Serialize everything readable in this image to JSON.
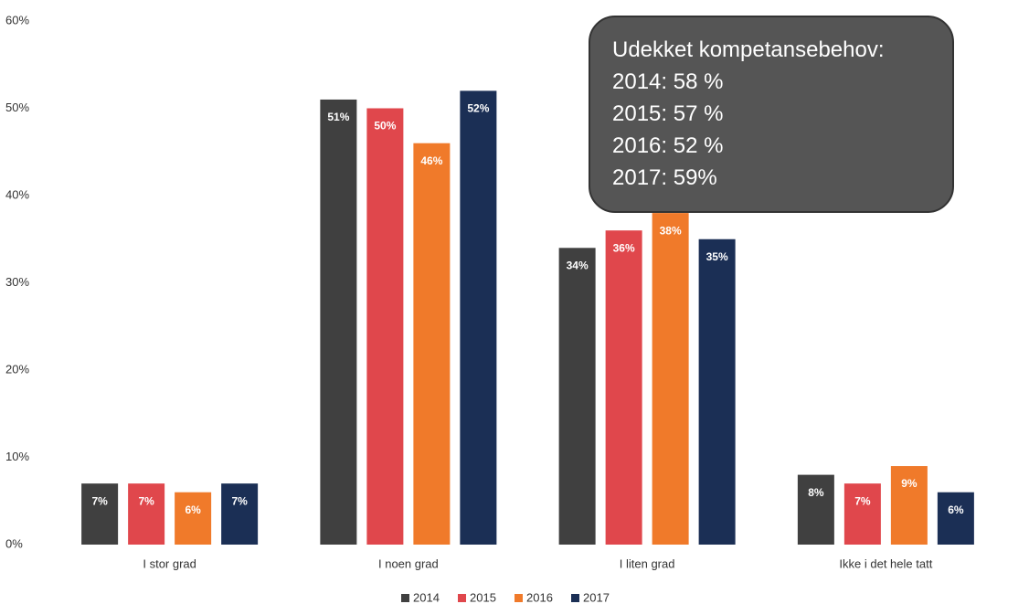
{
  "chart_data": {
    "type": "bar",
    "categories": [
      "I stor grad",
      "I noen grad",
      "I liten grad",
      "Ikke i det hele tatt"
    ],
    "series": [
      {
        "name": "2014",
        "color": "#404040",
        "values": [
          7,
          51,
          34,
          8
        ],
        "value_labels": [
          "7%",
          "51%",
          "34%",
          "8%"
        ]
      },
      {
        "name": "2015",
        "color": "#e0474c",
        "values": [
          7,
          50,
          36,
          7
        ],
        "value_labels": [
          "7%",
          "50%",
          "36%",
          "7%"
        ]
      },
      {
        "name": "2016",
        "color": "#f07a2a",
        "values": [
          6,
          46,
          38,
          9
        ],
        "value_labels": [
          "6%",
          "46%",
          "38%",
          "9%"
        ]
      },
      {
        "name": "2017",
        "color": "#1b2f55",
        "values": [
          7,
          52,
          35,
          6
        ],
        "value_labels": [
          "7%",
          "52%",
          "35%",
          "6%"
        ]
      }
    ],
    "ylim": [
      0,
      60
    ],
    "yticks": [
      {
        "value": 0,
        "label": "0%"
      },
      {
        "value": 10,
        "label": "10%"
      },
      {
        "value": 20,
        "label": "20%"
      },
      {
        "value": 30,
        "label": "30%"
      },
      {
        "value": 40,
        "label": "40%"
      },
      {
        "value": 50,
        "label": "50%"
      },
      {
        "value": 60,
        "label": "60%"
      }
    ],
    "grid": false,
    "legend": "bottom",
    "annotation": [
      "Udekket kompetansebehov:",
      "2014: 58 %",
      "2015: 57 %",
      "2016: 52 %",
      "2017: 59%"
    ]
  }
}
